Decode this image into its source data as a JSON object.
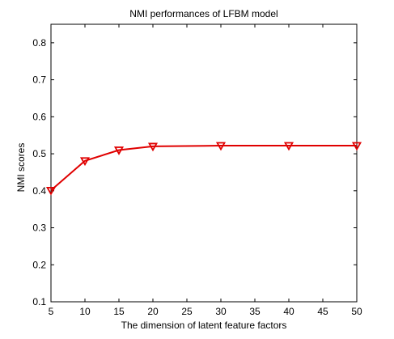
{
  "chart_data": {
    "type": "line",
    "title": "NMI performances of LFBM model",
    "xlabel": "The dimension of latent feature factors",
    "ylabel": "NMI scores",
    "xlim": [
      5,
      50
    ],
    "ylim": [
      0.1,
      0.85
    ],
    "xticks": [
      5,
      10,
      15,
      20,
      25,
      30,
      35,
      40,
      45,
      50
    ],
    "yticks": [
      0.1,
      0.2,
      0.3,
      0.4,
      0.5,
      0.6,
      0.7,
      0.8
    ],
    "xtick_labels": [
      "5",
      "10",
      "15",
      "20",
      "25",
      "30",
      "35",
      "40",
      "45",
      "50"
    ],
    "ytick_labels": [
      "0.1",
      "0.2",
      "0.3",
      "0.4",
      "0.5",
      "0.6",
      "0.7",
      "0.8"
    ],
    "grid": false,
    "legend": "none",
    "series": [
      {
        "color": "#e00000",
        "marker": "triangle-down",
        "x": [
          5,
          10,
          15,
          20,
          30,
          40,
          50
        ],
        "values": [
          0.401,
          0.481,
          0.51,
          0.52,
          0.522,
          0.522,
          0.522
        ]
      }
    ]
  }
}
